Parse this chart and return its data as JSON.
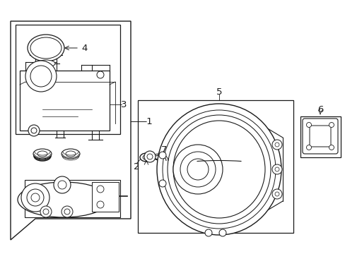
{
  "bg_color": "#ffffff",
  "line_color": "#1a1a1a",
  "fig_width": 4.89,
  "fig_height": 3.6,
  "dpi": 100,
  "label_fs": 9.5,
  "lw": 0.7
}
